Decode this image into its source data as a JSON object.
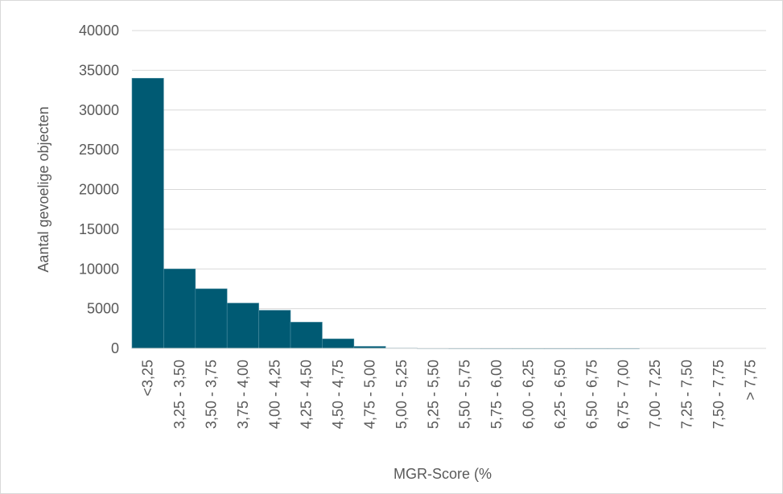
{
  "chart_data": {
    "type": "bar",
    "title": "",
    "xlabel": "MGR-Score (%",
    "ylabel": "Aantal gevoelige objecten",
    "ylim": [
      0,
      40000
    ],
    "yticks": [
      0,
      5000,
      10000,
      15000,
      20000,
      25000,
      30000,
      35000,
      40000
    ],
    "grid": "horizontal",
    "legend": "none",
    "bar_color": "#005a73",
    "categories": [
      "<3,25",
      "3,25 - 3,50",
      "3,50 - 3,75",
      "3,75 - 4,00",
      "4,00 - 4,25",
      "4,25 - 4,50",
      "4,50 - 4,75",
      "4,75 - 5,00",
      "5,00 - 5,25",
      "5,25 - 5,50",
      "5,50 - 5,75",
      "5,75 - 6,00",
      "6,00 - 6,25",
      "6,25 - 6,50",
      "6,50 - 6,75",
      "6,75 - 7,00",
      "7,00 - 7,25",
      "7,25 - 7,50",
      "7,50 - 7,75",
      "> 7,75"
    ],
    "values": [
      34000,
      10000,
      7500,
      5700,
      4800,
      3300,
      1200,
      250,
      40,
      20,
      10,
      5,
      3,
      2,
      1,
      1,
      0,
      0,
      0,
      0
    ]
  }
}
